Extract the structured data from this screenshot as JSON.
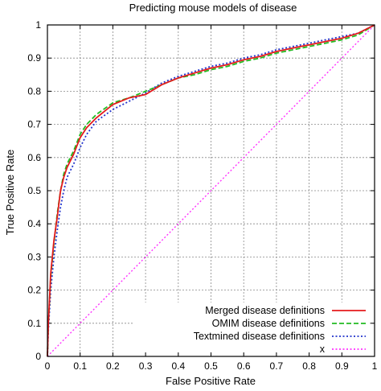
{
  "chart_data": {
    "type": "line",
    "title": "Predicting mouse models of disease",
    "xlabel": "False Positive Rate",
    "ylabel": "True Positive Rate",
    "xlim": [
      0,
      1
    ],
    "ylim": [
      0,
      1
    ],
    "x_ticks": [
      "0",
      "0.1",
      "0.2",
      "0.3",
      "0.4",
      "0.5",
      "0.6",
      "0.7",
      "0.8",
      "0.9",
      "1"
    ],
    "y_ticks": [
      "0",
      "0.1",
      "0.2",
      "0.3",
      "0.4",
      "0.5",
      "0.6",
      "0.7",
      "0.8",
      "0.9",
      "1"
    ],
    "grid": true,
    "legend_position": "bottom-right",
    "series": [
      {
        "name": "Merged disease definitions",
        "color": "#e41a1c",
        "style": "solid",
        "points": [
          [
            0,
            0
          ],
          [
            0.003,
            0.1
          ],
          [
            0.01,
            0.25
          ],
          [
            0.02,
            0.35
          ],
          [
            0.03,
            0.42
          ],
          [
            0.04,
            0.5
          ],
          [
            0.05,
            0.54
          ],
          [
            0.06,
            0.57
          ],
          [
            0.08,
            0.61
          ],
          [
            0.1,
            0.66
          ],
          [
            0.12,
            0.69
          ],
          [
            0.15,
            0.72
          ],
          [
            0.2,
            0.76
          ],
          [
            0.25,
            0.78
          ],
          [
            0.3,
            0.79
          ],
          [
            0.35,
            0.82
          ],
          [
            0.4,
            0.84
          ],
          [
            0.45,
            0.855
          ],
          [
            0.5,
            0.87
          ],
          [
            0.55,
            0.88
          ],
          [
            0.6,
            0.895
          ],
          [
            0.65,
            0.905
          ],
          [
            0.7,
            0.92
          ],
          [
            0.75,
            0.93
          ],
          [
            0.8,
            0.94
          ],
          [
            0.85,
            0.95
          ],
          [
            0.9,
            0.96
          ],
          [
            0.95,
            0.975
          ],
          [
            1,
            1
          ]
        ]
      },
      {
        "name": "OMIM disease definitions",
        "color": "#22bb22",
        "style": "dashed",
        "points": [
          [
            0,
            0
          ],
          [
            0.003,
            0.1
          ],
          [
            0.01,
            0.24
          ],
          [
            0.02,
            0.34
          ],
          [
            0.03,
            0.43
          ],
          [
            0.04,
            0.5
          ],
          [
            0.05,
            0.55
          ],
          [
            0.06,
            0.58
          ],
          [
            0.08,
            0.62
          ],
          [
            0.1,
            0.67
          ],
          [
            0.12,
            0.7
          ],
          [
            0.15,
            0.73
          ],
          [
            0.2,
            0.765
          ],
          [
            0.25,
            0.78
          ],
          [
            0.3,
            0.8
          ],
          [
            0.35,
            0.82
          ],
          [
            0.4,
            0.84
          ],
          [
            0.45,
            0.85
          ],
          [
            0.5,
            0.865
          ],
          [
            0.55,
            0.875
          ],
          [
            0.6,
            0.89
          ],
          [
            0.65,
            0.9
          ],
          [
            0.7,
            0.915
          ],
          [
            0.75,
            0.925
          ],
          [
            0.8,
            0.935
          ],
          [
            0.85,
            0.945
          ],
          [
            0.9,
            0.955
          ],
          [
            0.95,
            0.97
          ],
          [
            1,
            1
          ]
        ]
      },
      {
        "name": "Textmined disease definitions",
        "color": "#2233cc",
        "style": "dotted",
        "points": [
          [
            0,
            0
          ],
          [
            0.003,
            0.08
          ],
          [
            0.01,
            0.2
          ],
          [
            0.02,
            0.3
          ],
          [
            0.03,
            0.38
          ],
          [
            0.04,
            0.45
          ],
          [
            0.05,
            0.5
          ],
          [
            0.06,
            0.54
          ],
          [
            0.08,
            0.58
          ],
          [
            0.1,
            0.63
          ],
          [
            0.12,
            0.67
          ],
          [
            0.15,
            0.71
          ],
          [
            0.2,
            0.745
          ],
          [
            0.25,
            0.77
          ],
          [
            0.3,
            0.795
          ],
          [
            0.35,
            0.825
          ],
          [
            0.4,
            0.845
          ],
          [
            0.45,
            0.86
          ],
          [
            0.5,
            0.875
          ],
          [
            0.55,
            0.885
          ],
          [
            0.6,
            0.9
          ],
          [
            0.65,
            0.91
          ],
          [
            0.7,
            0.925
          ],
          [
            0.75,
            0.935
          ],
          [
            0.8,
            0.945
          ],
          [
            0.85,
            0.955
          ],
          [
            0.9,
            0.965
          ],
          [
            0.95,
            0.975
          ],
          [
            1,
            1
          ]
        ]
      },
      {
        "name": "x",
        "color": "#ff33ff",
        "style": "dotted",
        "points": [
          [
            0,
            0
          ],
          [
            1,
            1
          ]
        ]
      }
    ]
  }
}
